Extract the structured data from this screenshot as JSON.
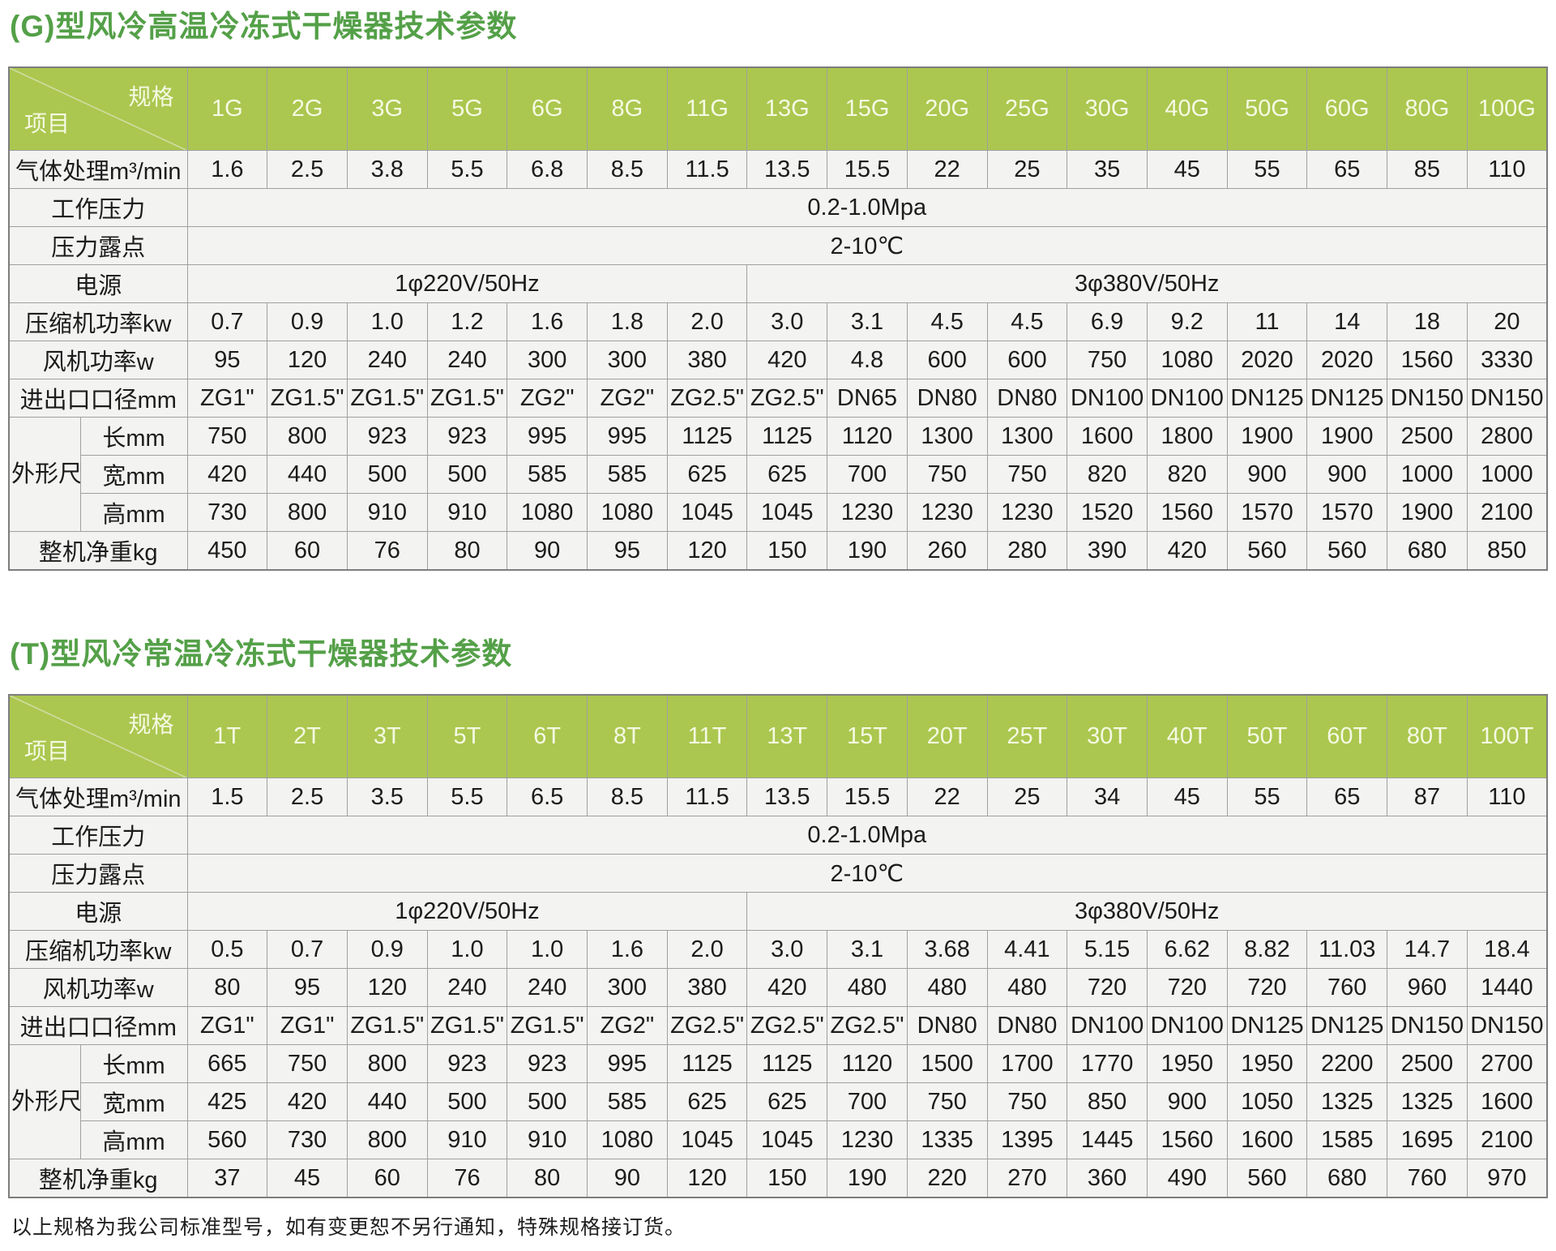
{
  "colors": {
    "title_green": "#54a048",
    "header_green": "#abc74f",
    "header_text": "#f5f9e3",
    "cell_background": "#f3f3f2",
    "grid_border": "#a0a0a0"
  },
  "footer": "以上规格为我公司标准型号，如有变更恕不另行通知，特殊规格接订货。",
  "tables": [
    {
      "title": "(G)型风冷高温冷冻式干燥器技术参数",
      "corner": {
        "top_right": "规格",
        "bottom_left": "项目"
      },
      "columns": [
        "1G",
        "2G",
        "3G",
        "5G",
        "6G",
        "8G",
        "11G",
        "13G",
        "15G",
        "20G",
        "25G",
        "30G",
        "40G",
        "50G",
        "60G",
        "80G",
        "100G"
      ],
      "rows": [
        {
          "type": "values",
          "label": "气体处理m³/min",
          "values": [
            "1.6",
            "2.5",
            "3.8",
            "5.5",
            "6.8",
            "8.5",
            "11.5",
            "13.5",
            "15.5",
            "22",
            "25",
            "35",
            "45",
            "55",
            "65",
            "85",
            "110"
          ]
        },
        {
          "type": "span",
          "label": "工作压力",
          "value": "0.2-1.0Mpa"
        },
        {
          "type": "span",
          "label": "压力露点",
          "value": "2-10℃"
        },
        {
          "type": "split",
          "label": "电源",
          "left": {
            "value": "1φ220V/50Hz",
            "cols": 7
          },
          "right": {
            "value": "3φ380V/50Hz",
            "cols": 10
          }
        },
        {
          "type": "values",
          "label": "压缩机功率kw",
          "values": [
            "0.7",
            "0.9",
            "1.0",
            "1.2",
            "1.6",
            "1.8",
            "2.0",
            "3.0",
            "3.1",
            "4.5",
            "4.5",
            "6.9",
            "9.2",
            "11",
            "14",
            "18",
            "20"
          ]
        },
        {
          "type": "values",
          "label": "风机功率w",
          "values": [
            "95",
            "120",
            "240",
            "240",
            "300",
            "300",
            "380",
            "420",
            "4.8",
            "600",
            "600",
            "750",
            "1080",
            "2020",
            "2020",
            "1560",
            "3330"
          ]
        },
        {
          "type": "values",
          "label": "进出口口径mm",
          "values": [
            "ZG1\"",
            "ZG1.5\"",
            "ZG1.5\"",
            "ZG1.5\"",
            "ZG2\"",
            "ZG2\"",
            "ZG2.5\"",
            "ZG2.5\"",
            "DN65",
            "DN80",
            "DN80",
            "DN100",
            "DN100",
            "DN125",
            "DN125",
            "DN150",
            "DN150"
          ]
        },
        {
          "type": "group",
          "label": "外形尺寸",
          "rows": [
            {
              "label": "长mm",
              "values": [
                "750",
                "800",
                "923",
                "923",
                "995",
                "995",
                "1125",
                "1125",
                "1120",
                "1300",
                "1300",
                "1600",
                "1800",
                "1900",
                "1900",
                "2500",
                "2800"
              ]
            },
            {
              "label": "宽mm",
              "values": [
                "420",
                "440",
                "500",
                "500",
                "585",
                "585",
                "625",
                "625",
                "700",
                "750",
                "750",
                "820",
                "820",
                "900",
                "900",
                "1000",
                "1000"
              ]
            },
            {
              "label": "高mm",
              "values": [
                "730",
                "800",
                "910",
                "910",
                "1080",
                "1080",
                "1045",
                "1045",
                "1230",
                "1230",
                "1230",
                "1520",
                "1560",
                "1570",
                "1570",
                "1900",
                "2100"
              ]
            }
          ]
        },
        {
          "type": "values",
          "label": "整机净重kg",
          "values": [
            "450",
            "60",
            "76",
            "80",
            "90",
            "95",
            "120",
            "150",
            "190",
            "260",
            "280",
            "390",
            "420",
            "560",
            "560",
            "680",
            "850"
          ]
        }
      ]
    },
    {
      "title": "(T)型风冷常温冷冻式干燥器技术参数",
      "corner": {
        "top_right": "规格",
        "bottom_left": "项目"
      },
      "columns": [
        "1T",
        "2T",
        "3T",
        "5T",
        "6T",
        "8T",
        "11T",
        "13T",
        "15T",
        "20T",
        "25T",
        "30T",
        "40T",
        "50T",
        "60T",
        "80T",
        "100T"
      ],
      "rows": [
        {
          "type": "values",
          "label": "气体处理m³/min",
          "values": [
            "1.5",
            "2.5",
            "3.5",
            "5.5",
            "6.5",
            "8.5",
            "11.5",
            "13.5",
            "15.5",
            "22",
            "25",
            "34",
            "45",
            "55",
            "65",
            "87",
            "110"
          ]
        },
        {
          "type": "span",
          "label": "工作压力",
          "value": "0.2-1.0Mpa"
        },
        {
          "type": "span",
          "label": "压力露点",
          "value": "2-10℃"
        },
        {
          "type": "split",
          "label": "电源",
          "left": {
            "value": "1φ220V/50Hz",
            "cols": 7
          },
          "right": {
            "value": "3φ380V/50Hz",
            "cols": 10
          }
        },
        {
          "type": "values",
          "label": "压缩机功率kw",
          "values": [
            "0.5",
            "0.7",
            "0.9",
            "1.0",
            "1.0",
            "1.6",
            "2.0",
            "3.0",
            "3.1",
            "3.68",
            "4.41",
            "5.15",
            "6.62",
            "8.82",
            "11.03",
            "14.7",
            "18.4"
          ]
        },
        {
          "type": "values",
          "label": "风机功率w",
          "values": [
            "80",
            "95",
            "120",
            "240",
            "240",
            "300",
            "380",
            "420",
            "480",
            "480",
            "480",
            "720",
            "720",
            "720",
            "760",
            "960",
            "1440"
          ]
        },
        {
          "type": "values",
          "label": "进出口口径mm",
          "values": [
            "ZG1\"",
            "ZG1\"",
            "ZG1.5\"",
            "ZG1.5\"",
            "ZG1.5\"",
            "ZG2\"",
            "ZG2.5\"",
            "ZG2.5\"",
            "ZG2.5\"",
            "DN80",
            "DN80",
            "DN100",
            "DN100",
            "DN125",
            "DN125",
            "DN150",
            "DN150"
          ]
        },
        {
          "type": "group",
          "label": "外形尺寸",
          "rows": [
            {
              "label": "长mm",
              "values": [
                "665",
                "750",
                "800",
                "923",
                "923",
                "995",
                "1125",
                "1125",
                "1120",
                "1500",
                "1700",
                "1770",
                "1950",
                "1950",
                "2200",
                "2500",
                "2700"
              ]
            },
            {
              "label": "宽mm",
              "values": [
                "425",
                "420",
                "440",
                "500",
                "500",
                "585",
                "625",
                "625",
                "700",
                "750",
                "750",
                "850",
                "900",
                "1050",
                "1325",
                "1325",
                "1600"
              ]
            },
            {
              "label": "高mm",
              "values": [
                "560",
                "730",
                "800",
                "910",
                "910",
                "1080",
                "1045",
                "1045",
                "1230",
                "1335",
                "1395",
                "1445",
                "1560",
                "1600",
                "1585",
                "1695",
                "2100"
              ]
            }
          ]
        },
        {
          "type": "values",
          "label": "整机净重kg",
          "values": [
            "37",
            "45",
            "60",
            "76",
            "80",
            "90",
            "120",
            "150",
            "190",
            "220",
            "270",
            "360",
            "490",
            "560",
            "680",
            "760",
            "970"
          ]
        }
      ]
    }
  ]
}
